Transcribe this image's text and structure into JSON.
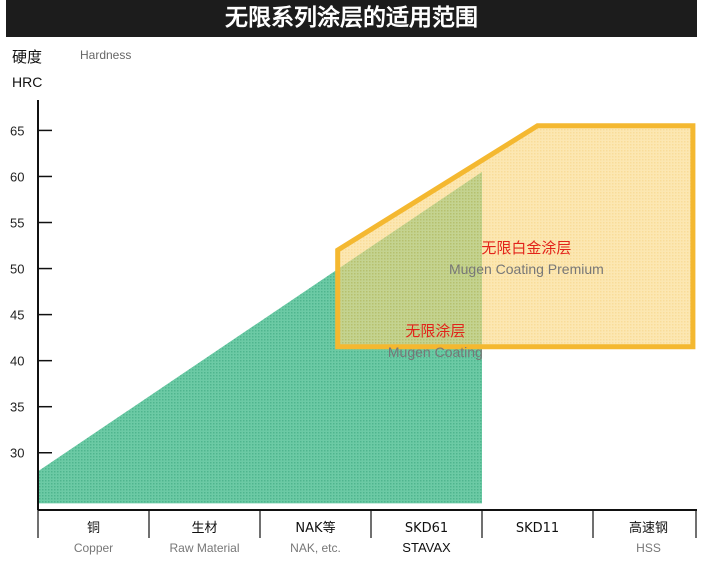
{
  "chart_data": {
    "type": "area",
    "title": "无限系列涂层的适用范围",
    "ylabel": {
      "cn": "硬度",
      "en": "Hardness",
      "unit": "HRC"
    },
    "yticks": [
      30,
      35,
      40,
      45,
      50,
      55,
      60,
      65
    ],
    "ylim": [
      24,
      67
    ],
    "categories": [
      {
        "cn": "铜",
        "en": "Copper"
      },
      {
        "cn": "生材",
        "en": "Raw Material"
      },
      {
        "cn": "NAK等",
        "en": "NAK, etc."
      },
      {
        "cn": "SKD61",
        "en": "STAVAX"
      },
      {
        "cn": "SKD11",
        "en": ""
      },
      {
        "cn": "高速钢",
        "en": "HSS"
      }
    ],
    "series": [
      {
        "name": "无限涂层",
        "label_en": "Mugen Coating",
        "color": "#5cc39b",
        "polygon": [
          [
            0,
            28
          ],
          [
            4.0,
            60.5
          ],
          [
            4.0,
            24.5
          ],
          [
            0,
            24.5
          ]
        ]
      },
      {
        "name": "无限白金涂层",
        "label_en": "Mugen Coating Premium",
        "color": "#f4b830",
        "fill": "#f9d67a",
        "polygon": [
          [
            2.7,
            52
          ],
          [
            4.5,
            65.5
          ],
          [
            5.9,
            65.5
          ],
          [
            5.9,
            41.5
          ],
          [
            2.7,
            41.5
          ]
        ]
      }
    ],
    "grid": false,
    "legend": "inline"
  }
}
